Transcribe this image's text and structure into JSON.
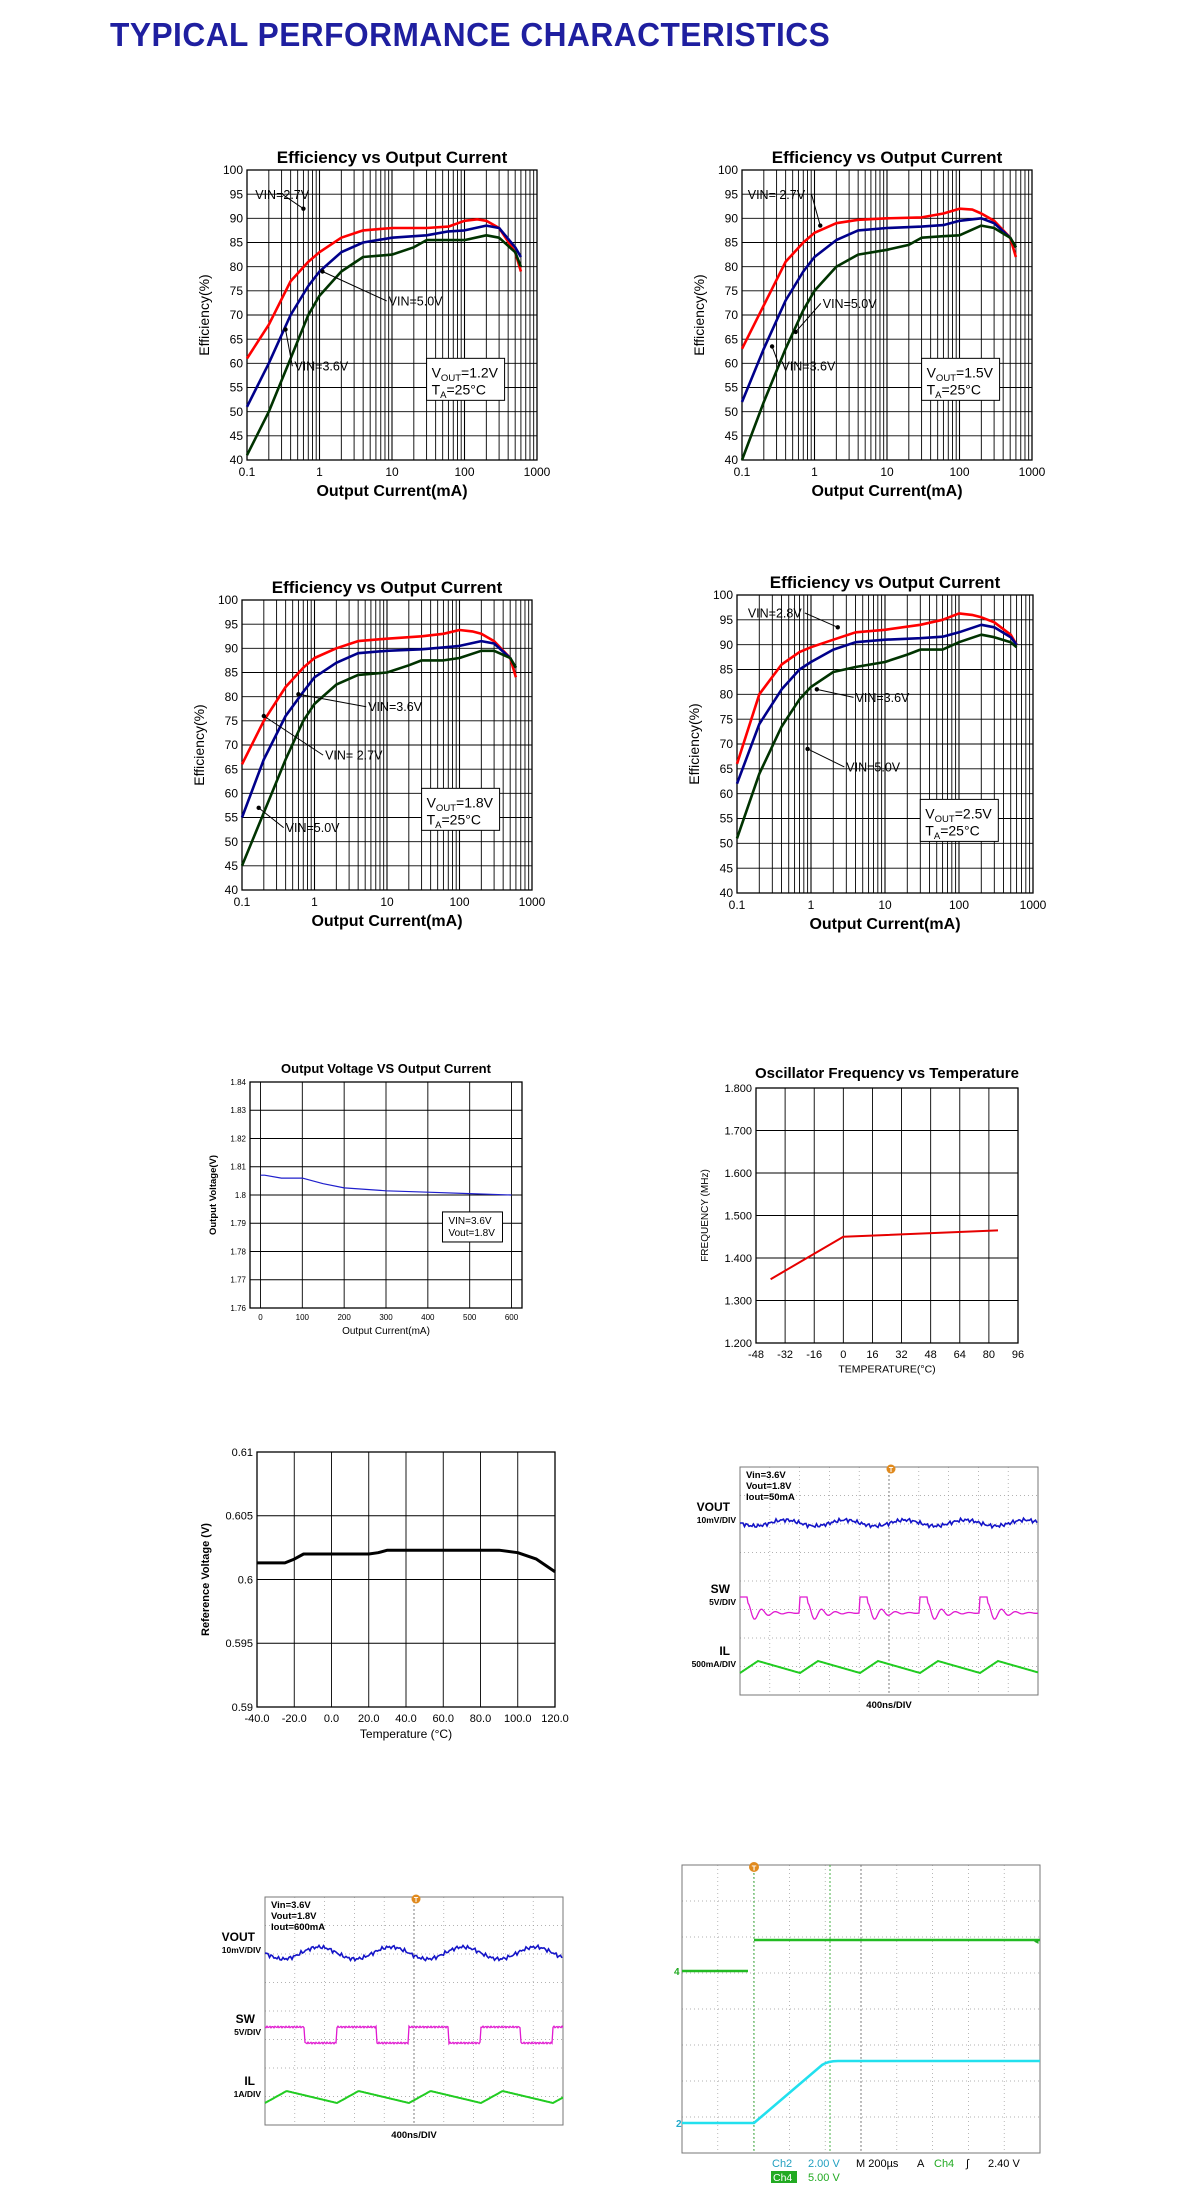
{
  "page": {
    "title": "TYPICAL PERFORMANCE CHARACTERISTICS"
  },
  "chart_data": [
    {
      "id": "eff12",
      "type": "line",
      "title": "Efficiency vs Output Current",
      "xlabel": "Output Current(mA)",
      "ylabel": "Efficiency(%)",
      "xscale": "log",
      "xlim": [
        0.1,
        1000
      ],
      "ylim": [
        40,
        100
      ],
      "xticks": [
        0.1,
        1,
        10,
        100,
        1000
      ],
      "xtick_labels": [
        "0.1",
        "1",
        "10",
        "100",
        "1000"
      ],
      "yticks": [
        40,
        45,
        50,
        55,
        60,
        65,
        70,
        75,
        80,
        85,
        90,
        95,
        100
      ],
      "grid": true,
      "series": [
        {
          "name": "VIN=2.7V",
          "color": "#ff0000",
          "x": [
            0.1,
            0.2,
            0.4,
            0.7,
            1,
            2,
            4,
            10,
            30,
            60,
            100,
            150,
            200,
            300,
            500,
            600
          ],
          "y": [
            61,
            68,
            77,
            81,
            83,
            86,
            87.5,
            88,
            88,
            88.3,
            89.5,
            89.8,
            89.5,
            88,
            83,
            79
          ]
        },
        {
          "name": "VIN=3.6V",
          "color": "#00008b",
          "x": [
            0.1,
            0.2,
            0.4,
            0.7,
            1,
            2,
            4,
            10,
            30,
            60,
            100,
            200,
            300,
            500,
            600
          ],
          "y": [
            51,
            60,
            70,
            76,
            79,
            83,
            85,
            86,
            86.5,
            87.3,
            87.5,
            88.5,
            88,
            84,
            82
          ]
        },
        {
          "name": "VIN=5.0V",
          "color": "#003300",
          "x": [
            0.1,
            0.2,
            0.4,
            0.7,
            1,
            2,
            4,
            10,
            20,
            30,
            60,
            100,
            200,
            300,
            500,
            600
          ],
          "y": [
            41,
            50,
            61,
            70,
            74,
            79,
            82,
            82.5,
            84,
            85.5,
            85.5,
            85.5,
            86.5,
            86,
            83,
            80
          ]
        }
      ],
      "annotations": [
        {
          "text": "VIN=2.7V",
          "x": 0.13,
          "y": 94,
          "ax": 0.6,
          "ay": 92
        },
        {
          "text": "VIN=5.0V",
          "x": 9,
          "y": 72,
          "ax": 1.1,
          "ay": 79
        },
        {
          "text": "VIN=3.6V",
          "x": 0.45,
          "y": 58.5,
          "ax": 0.34,
          "ay": 67
        }
      ],
      "legend_box": {
        "line1": "VOUT=1.2V",
        "line2": "TA=25°C",
        "v_main": "V",
        "v_sub": "OUT",
        "v_val": "=1.2V",
        "t_main": "T",
        "t_sub": "A",
        "t_val": "=25°C",
        "x": 30,
        "y": 54
      }
    },
    {
      "id": "eff15",
      "type": "line",
      "title": "Efficiency vs Output Current",
      "xlabel": "Output Current(mA)",
      "ylabel": "Efficiency(%)",
      "xscale": "log",
      "xlim": [
        0.1,
        1000
      ],
      "ylim": [
        40,
        100
      ],
      "xticks": [
        0.1,
        1,
        10,
        100,
        1000
      ],
      "xtick_labels": [
        "0.1",
        "1",
        "10",
        "100",
        "1000"
      ],
      "yticks": [
        40,
        45,
        50,
        55,
        60,
        65,
        70,
        75,
        80,
        85,
        90,
        95,
        100
      ],
      "grid": true,
      "series": [
        {
          "name": "VIN=2.7V",
          "color": "#ff0000",
          "x": [
            0.1,
            0.2,
            0.4,
            0.7,
            1,
            2,
            4,
            10,
            30,
            60,
            100,
            150,
            200,
            300,
            500,
            600
          ],
          "y": [
            63,
            72,
            81,
            85,
            87,
            89,
            89.7,
            90,
            90.2,
            91,
            92,
            91.8,
            91,
            89.5,
            86,
            82
          ]
        },
        {
          "name": "VIN=3.6V",
          "color": "#00008b",
          "x": [
            0.1,
            0.2,
            0.4,
            0.7,
            1,
            2,
            4,
            10,
            30,
            60,
            100,
            200,
            300,
            500,
            600
          ],
          "y": [
            52,
            63,
            73,
            79,
            82,
            85.5,
            87.5,
            88,
            88.3,
            88.6,
            89.5,
            90,
            89,
            86,
            84
          ]
        },
        {
          "name": "VIN=5.0V",
          "color": "#003300",
          "x": [
            0.1,
            0.2,
            0.4,
            0.7,
            1,
            2,
            4,
            10,
            20,
            30,
            60,
            100,
            200,
            300,
            500,
            600
          ],
          "y": [
            40,
            52,
            63,
            71,
            75,
            80,
            82.5,
            83.5,
            84.5,
            86,
            86.3,
            86.5,
            88.5,
            88,
            86,
            84
          ]
        }
      ],
      "annotations": [
        {
          "text": "VIN= 2.7V",
          "x": 0.12,
          "y": 94,
          "ax": 1.2,
          "ay": 88.5
        },
        {
          "text": "VIN=5.0V",
          "x": 1.3,
          "y": 71.5,
          "ax": 0.55,
          "ay": 66.5
        },
        {
          "text": "VIN=3.6V",
          "x": 0.35,
          "y": 58.5,
          "ax": 0.26,
          "ay": 63.5
        }
      ],
      "legend_box": {
        "v_main": "V",
        "v_sub": "OUT",
        "v_val": "=1.5V",
        "t_main": "T",
        "t_sub": "A",
        "t_val": "=25°C",
        "x": 30,
        "y": 54
      }
    },
    {
      "id": "eff18",
      "type": "line",
      "title": "Efficiency vs Output Current",
      "xlabel": "Output Current(mA)",
      "ylabel": "Efficiency(%)",
      "xscale": "log",
      "xlim": [
        0.1,
        1000
      ],
      "ylim": [
        40,
        100
      ],
      "xticks": [
        0.1,
        1,
        10,
        100,
        1000
      ],
      "xtick_labels": [
        "0.1",
        "1",
        "10",
        "100",
        "1000"
      ],
      "yticks": [
        40,
        45,
        50,
        55,
        60,
        65,
        70,
        75,
        80,
        85,
        90,
        95,
        100
      ],
      "grid": true,
      "series": [
        {
          "name": "VIN= 2.7V",
          "color": "#ff0000",
          "x": [
            0.1,
            0.2,
            0.4,
            0.7,
            1,
            2,
            4,
            10,
            30,
            60,
            100,
            150,
            200,
            300,
            500,
            600
          ],
          "y": [
            66,
            75,
            82,
            86,
            88,
            90,
            91.5,
            92,
            92.5,
            93,
            93.8,
            93.5,
            93,
            91.5,
            88,
            84
          ]
        },
        {
          "name": "VIN=3.6V",
          "color": "#00008b",
          "x": [
            0.1,
            0.2,
            0.4,
            0.7,
            1,
            2,
            4,
            10,
            30,
            60,
            100,
            200,
            300,
            500,
            600
          ],
          "y": [
            55,
            67,
            76,
            81,
            84,
            87,
            89,
            89.5,
            89.8,
            90.2,
            90.5,
            91.5,
            91,
            88,
            86
          ]
        },
        {
          "name": "VIN=5.0V",
          "color": "#003300",
          "x": [
            0.1,
            0.2,
            0.4,
            0.7,
            1,
            2,
            4,
            10,
            20,
            30,
            60,
            100,
            200,
            300,
            500,
            600
          ],
          "y": [
            45,
            56,
            67,
            75,
            78.5,
            82.5,
            84.5,
            85,
            86.5,
            87.5,
            87.5,
            88,
            89.5,
            89.5,
            88,
            86
          ]
        }
      ],
      "annotations": [
        {
          "text": "VIN=3.6V",
          "x": 5.5,
          "y": 77,
          "ax": 0.6,
          "ay": 80.5
        },
        {
          "text": "VIN= 2.7V",
          "x": 1.4,
          "y": 67,
          "ax": 0.2,
          "ay": 76
        },
        {
          "text": "VIN=5.0V",
          "x": 0.4,
          "y": 52,
          "ax": 0.17,
          "ay": 57
        }
      ],
      "legend_box": {
        "v_main": "V",
        "v_sub": "OUT",
        "v_val": "=1.8V",
        "t_main": "T",
        "t_sub": "A",
        "t_val": "=25°C",
        "x": 30,
        "y": 54
      }
    },
    {
      "id": "eff25",
      "type": "line",
      "title": "Efficiency vs Output Current",
      "xlabel": "Output Current(mA)",
      "ylabel": "Efficiency(%)",
      "xscale": "log",
      "xlim": [
        0.1,
        1000
      ],
      "ylim": [
        40,
        100
      ],
      "xticks": [
        0.1,
        1,
        10,
        100,
        1000
      ],
      "xtick_labels": [
        "0.1",
        "1",
        "10",
        "100",
        "1000"
      ],
      "yticks": [
        40,
        45,
        50,
        55,
        60,
        65,
        70,
        75,
        80,
        85,
        90,
        95,
        100
      ],
      "grid": true,
      "series": [
        {
          "name": "VIN=2.8V",
          "color": "#ff0000",
          "x": [
            0.1,
            0.2,
            0.4,
            0.7,
            1,
            2,
            4,
            10,
            30,
            60,
            100,
            150,
            200,
            300,
            500,
            600
          ],
          "y": [
            66,
            80,
            86,
            88.5,
            89.5,
            91,
            92.5,
            93,
            94,
            95,
            96.3,
            96,
            95.5,
            94.5,
            92,
            90
          ]
        },
        {
          "name": "VIN=3.6V",
          "color": "#00008b",
          "x": [
            0.1,
            0.2,
            0.4,
            0.7,
            1,
            2,
            4,
            10,
            30,
            60,
            100,
            200,
            300,
            500,
            600
          ],
          "y": [
            62,
            74,
            81,
            85,
            86.5,
            89,
            90.5,
            91,
            91.3,
            91.6,
            92.5,
            94,
            93.5,
            91.5,
            90
          ]
        },
        {
          "name": "VIN=5.0V",
          "color": "#003300",
          "x": [
            0.1,
            0.2,
            0.4,
            0.7,
            1,
            2,
            4,
            10,
            20,
            30,
            60,
            100,
            200,
            300,
            500,
            600
          ],
          "y": [
            51,
            64,
            73.5,
            79,
            81.5,
            84.5,
            85.5,
            86.5,
            88,
            89,
            89,
            90.5,
            92,
            91.5,
            90.5,
            89.5
          ]
        }
      ],
      "annotations": [
        {
          "text": "VIN=2.8V",
          "x": 0.14,
          "y": 95.5,
          "ax": 2.3,
          "ay": 93.5
        },
        {
          "text": "VIN=3.6V",
          "x": 4,
          "y": 78.5,
          "ax": 1.2,
          "ay": 81
        },
        {
          "text": "VIN=5.0V",
          "x": 3,
          "y": 64.5,
          "ax": 0.9,
          "ay": 69
        }
      ],
      "legend_box": {
        "v_main": "V",
        "v_sub": "OUT",
        "v_val": "=2.5V",
        "t_main": "T",
        "t_sub": "A",
        "t_val": "=25°C",
        "x": 30,
        "y": 52
      }
    },
    {
      "id": "vout",
      "type": "line",
      "title": "Output Voltage VS Output Current",
      "xlabel": "Output Current(mA)",
      "ylabel": "Output Voltage(V)",
      "xlim": [
        -25,
        625
      ],
      "ylim": [
        1.76,
        1.84
      ],
      "xticks": [
        0,
        100,
        200,
        300,
        400,
        500,
        600
      ],
      "yticks": [
        1.76,
        1.77,
        1.78,
        1.79,
        1.8,
        1.81,
        1.82,
        1.83,
        1.84
      ],
      "grid": true,
      "series": [
        {
          "color": "#1f1fcc",
          "x": [
            0,
            10,
            50,
            100,
            150,
            200,
            300,
            400,
            500,
            600
          ],
          "y": [
            1.807,
            1.807,
            1.806,
            1.806,
            1.804,
            1.8025,
            1.8015,
            1.801,
            1.8005,
            1.8
          ]
        }
      ],
      "legend_box": {
        "lines": [
          "VIN=3.6V",
          "Vout=1.8V"
        ]
      }
    },
    {
      "id": "osc",
      "type": "line",
      "title": "Oscillator Frequency vs Temperature",
      "xlabel": "TEMPERATURE(°C)",
      "ylabel": "FREQUENCY (MHz)",
      "xlim": [
        -48,
        96
      ],
      "ylim": [
        1.2,
        1.8
      ],
      "xticks": [
        -48,
        -32,
        -16,
        0,
        16,
        32,
        48,
        64,
        80,
        96
      ],
      "yticks": [
        1.2,
        1.3,
        1.4,
        1.5,
        1.6,
        1.7,
        1.8
      ],
      "ytick_labels": [
        "1.200",
        "1.300",
        "1.400",
        "1.500",
        "1.600",
        "1.700",
        "1.800"
      ],
      "grid": true,
      "series": [
        {
          "color": "#e60000",
          "x": [
            -40,
            0,
            85
          ],
          "y": [
            1.35,
            1.45,
            1.465
          ]
        }
      ]
    },
    {
      "id": "vref",
      "type": "line",
      "title": "",
      "xlabel": "Temperature (°C)",
      "ylabel": "Reference Voltage (V)",
      "xlim": [
        -40,
        120
      ],
      "ylim": [
        0.59,
        0.61
      ],
      "xticks": [
        -40,
        -20,
        0,
        20,
        40,
        60,
        80,
        100,
        120
      ],
      "xtick_labels": [
        "-40.0",
        "-20.0",
        "0.0",
        "20.0",
        "40.0",
        "60.0",
        "80.0",
        "100.0",
        "120.0"
      ],
      "yticks": [
        0.59,
        0.595,
        0.6,
        0.605,
        0.61
      ],
      "ytick_labels": [
        "0.59",
        "0.595",
        "0.6",
        "0.605",
        "0.61"
      ],
      "grid": true,
      "series": [
        {
          "color": "#000000",
          "x": [
            -40,
            -25,
            -20,
            -15,
            0,
            20,
            25,
            30,
            50,
            80,
            90,
            100,
            110,
            120
          ],
          "y": [
            0.6013,
            0.6013,
            0.6016,
            0.602,
            0.602,
            0.602,
            0.6021,
            0.6023,
            0.6023,
            0.6023,
            0.6023,
            0.6021,
            0.6016,
            0.6006
          ]
        }
      ]
    },
    {
      "id": "scope50",
      "type": "scope",
      "info": [
        "Vin=3.6V",
        "Vout=1.8V",
        "Iout=50mA"
      ],
      "channels": [
        {
          "name": "VOUT",
          "scale": "10mV/DIV",
          "color": "#1414c8"
        },
        {
          "name": "SW",
          "scale": "5V/DIV",
          "color": "#e01ad0"
        },
        {
          "name": "IL",
          "scale": "500mA/DIV",
          "color": "#22cc22"
        }
      ],
      "timebase": "400ns/DIV",
      "trigger_marker": "T"
    },
    {
      "id": "scope600",
      "type": "scope",
      "info": [
        "Vin=3.6V",
        "Vout=1.8V",
        "Iout=600mA"
      ],
      "channels": [
        {
          "name": "VOUT",
          "scale": "10mV/DIV",
          "color": "#1414c8"
        },
        {
          "name": "SW",
          "scale": "5V/DIV",
          "color": "#e01ad0"
        },
        {
          "name": "IL",
          "scale": "1A/DIV",
          "color": "#22cc22"
        }
      ],
      "timebase": "400ns/DIV",
      "trigger_marker": "T"
    },
    {
      "id": "scopestart",
      "type": "scope",
      "channel_markers": [
        "4",
        "2"
      ],
      "trigger_marker": "T",
      "readout": {
        "ch2_label": "Ch2",
        "ch2_value": "2.00 V",
        "ch4_label": "Ch4",
        "ch4_value": "5.00 V",
        "timebase": "M 200µs",
        "trigger_mode": "A",
        "trigger_source": "Ch4",
        "trigger_slope": "∫",
        "trigger_level": "2.40 V"
      }
    }
  ]
}
